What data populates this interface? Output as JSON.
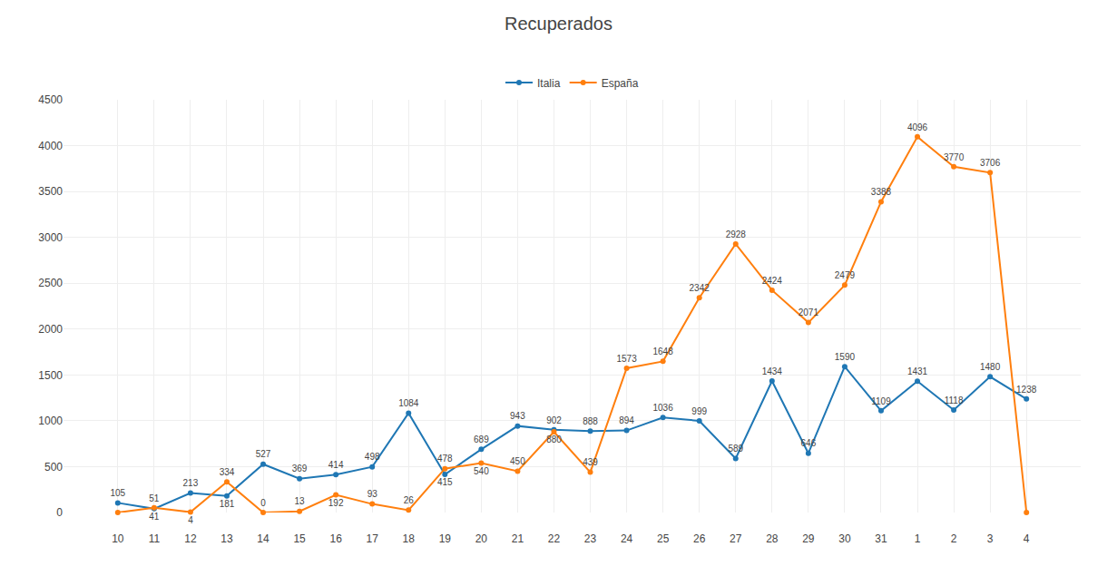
{
  "chart_data": {
    "type": "line",
    "title": "Recuperados",
    "categories": [
      "10",
      "11",
      "12",
      "13",
      "14",
      "15",
      "16",
      "17",
      "18",
      "19",
      "20",
      "21",
      "22",
      "23",
      "24",
      "25",
      "26",
      "27",
      "28",
      "29",
      "30",
      "31",
      "1",
      "2",
      "3",
      "4"
    ],
    "series": [
      {
        "name": "Italia",
        "values": [
          105,
          41,
          213,
          181,
          527,
          369,
          414,
          498,
          1084,
          415,
          689,
          943,
          902,
          888,
          894,
          1036,
          999,
          589,
          1434,
          646,
          1590,
          1109,
          1431,
          1118,
          1480,
          1238
        ]
      },
      {
        "name": "España",
        "values": [
          0,
          51,
          4,
          334,
          0,
          13,
          192,
          93,
          26,
          478,
          540,
          450,
          880,
          439,
          1573,
          1648,
          2342,
          2928,
          2424,
          2071,
          2479,
          3388,
          4096,
          3770,
          3706,
          0
        ],
        "value_labels": [
          null,
          "51",
          "4",
          "334",
          "0",
          "13",
          "192",
          "93",
          "26",
          "478",
          "540",
          "450",
          "880",
          "439",
          "1573",
          "1648",
          "2342",
          "2928",
          "2424",
          "2071",
          "2479",
          "3388",
          "4096",
          "3770",
          "3706",
          null
        ]
      }
    ],
    "ylim": [
      0,
      4500
    ],
    "yticks": [
      0,
      500,
      1000,
      1500,
      2000,
      2500,
      3000,
      3500,
      4000,
      4500
    ],
    "grid": true,
    "legend": "upper center",
    "data_labels": true,
    "marker": "circle",
    "line_style": "solid"
  }
}
